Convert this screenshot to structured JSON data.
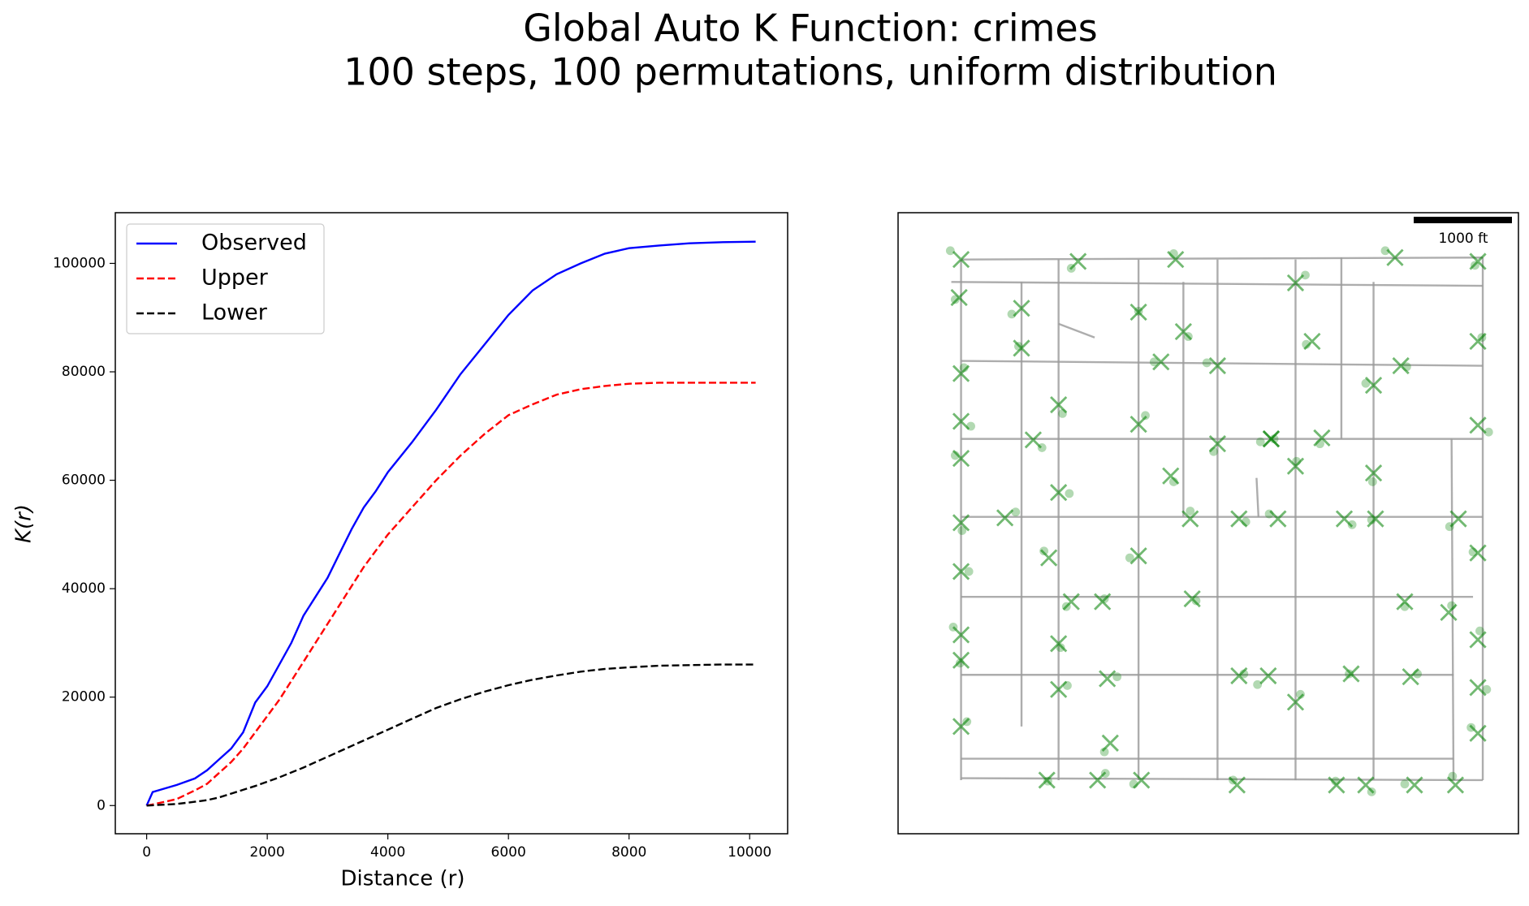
{
  "chart_data": {
    "type": "line",
    "title": "Global Auto K Function: crimes",
    "subtitle": "100 steps, 100 permutations, uniform distribution",
    "x_label": "Distance (r)",
    "y_label": "K(r)",
    "x": [
      0,
      100,
      500,
      800,
      1000,
      1200,
      1400,
      1600,
      1800,
      2000,
      2200,
      2400,
      2600,
      2800,
      3000,
      3200,
      3400,
      3600,
      3800,
      4000,
      4400,
      4800,
      5200,
      5600,
      6000,
      6400,
      6800,
      7200,
      7600,
      8000,
      8500,
      9000,
      9500,
      10100
    ],
    "series": [
      {
        "name": "Observed",
        "color": "#0000ff",
        "linestyle": "solid",
        "values": [
          0,
          2500,
          3800,
          5000,
          6500,
          8500,
          10500,
          13500,
          19000,
          22000,
          26000,
          30000,
          35000,
          38500,
          42000,
          46500,
          51000,
          55000,
          58000,
          61500,
          67000,
          73000,
          79500,
          85000,
          90500,
          95000,
          98000,
          100000,
          101800,
          102800,
          103300,
          103700,
          103900,
          104000
        ]
      },
      {
        "name": "Upper",
        "color": "#ff0000",
        "linestyle": "dashed",
        "values": [
          0,
          200,
          1200,
          2800,
          4000,
          6000,
          8000,
          10500,
          13500,
          16500,
          19500,
          23000,
          26500,
          30000,
          33500,
          37000,
          40500,
          44000,
          47000,
          50000,
          55000,
          60000,
          64500,
          68500,
          72000,
          74000,
          75800,
          76800,
          77400,
          77800,
          78000,
          78000,
          78000,
          78000
        ]
      },
      {
        "name": "Lower",
        "color": "#000000",
        "linestyle": "dashed",
        "values": [
          0,
          50,
          300,
          700,
          1000,
          1500,
          2200,
          2900,
          3600,
          4400,
          5200,
          6100,
          7000,
          8000,
          9000,
          10000,
          11000,
          12000,
          13000,
          14000,
          16000,
          18000,
          19600,
          21000,
          22200,
          23200,
          24000,
          24700,
          25200,
          25500,
          25800,
          25900,
          26000,
          26000
        ]
      }
    ],
    "xlim": [
      -520,
      10630
    ],
    "xticks": [
      0,
      2000,
      4000,
      6000,
      8000,
      10000
    ],
    "ylim": [
      -5200,
      109350
    ],
    "yticks": [
      0,
      20000,
      40000,
      60000,
      80000,
      100000
    ],
    "grid": false,
    "legend": "upper-left"
  },
  "map": {
    "scale_label": "1000 ft"
  }
}
